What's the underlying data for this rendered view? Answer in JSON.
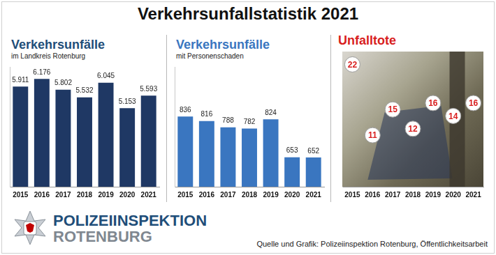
{
  "title": "Verkehrsunfallstatistik 2021",
  "chart_data": [
    {
      "type": "bar",
      "title": "Verkehrsunfälle",
      "subtitle": "im Landkreis Rotenburg",
      "categories": [
        "2015",
        "2016",
        "2017",
        "2018",
        "2019",
        "2020",
        "2021"
      ],
      "values": [
        5911,
        6176,
        5802,
        5532,
        6045,
        5153,
        5593
      ],
      "value_labels": [
        "5.911",
        "6.176",
        "5.802",
        "5.532",
        "6.045",
        "5.153",
        "5.593"
      ],
      "color": "#1f3864",
      "ylim": [
        2400,
        6600
      ],
      "data_labels": true,
      "tick_labels": "x",
      "grid": false
    },
    {
      "type": "bar",
      "title": "Verkehrsunfälle",
      "subtitle": "mit Personenschaden",
      "categories": [
        "2015",
        "2016",
        "2017",
        "2018",
        "2019",
        "2020",
        "2021"
      ],
      "values": [
        836,
        816,
        788,
        782,
        824,
        653,
        652
      ],
      "color": "#3a76c0",
      "ylim": [
        520,
        1060
      ],
      "data_labels": true,
      "tick_labels": "x",
      "grid": false
    },
    {
      "type": "line",
      "title": "Unfalltote",
      "categories": [
        "2015",
        "2016",
        "2017",
        "2018",
        "2019",
        "2020",
        "2021"
      ],
      "values": [
        22,
        11,
        15,
        12,
        16,
        14,
        16
      ],
      "color": "#d81e1e",
      "marker": "circle",
      "line_style": "none",
      "ylim": [
        3,
        24
      ],
      "data_labels": true,
      "tick_labels": "x",
      "grid": false
    }
  ],
  "logo": {
    "line1": "POLIZEIINSPEKTION",
    "line2": "ROTENBURG"
  },
  "source": "Quelle und Grafik: Polizeiinspektion Rotenburg, Öffentlichkeitsarbeit"
}
